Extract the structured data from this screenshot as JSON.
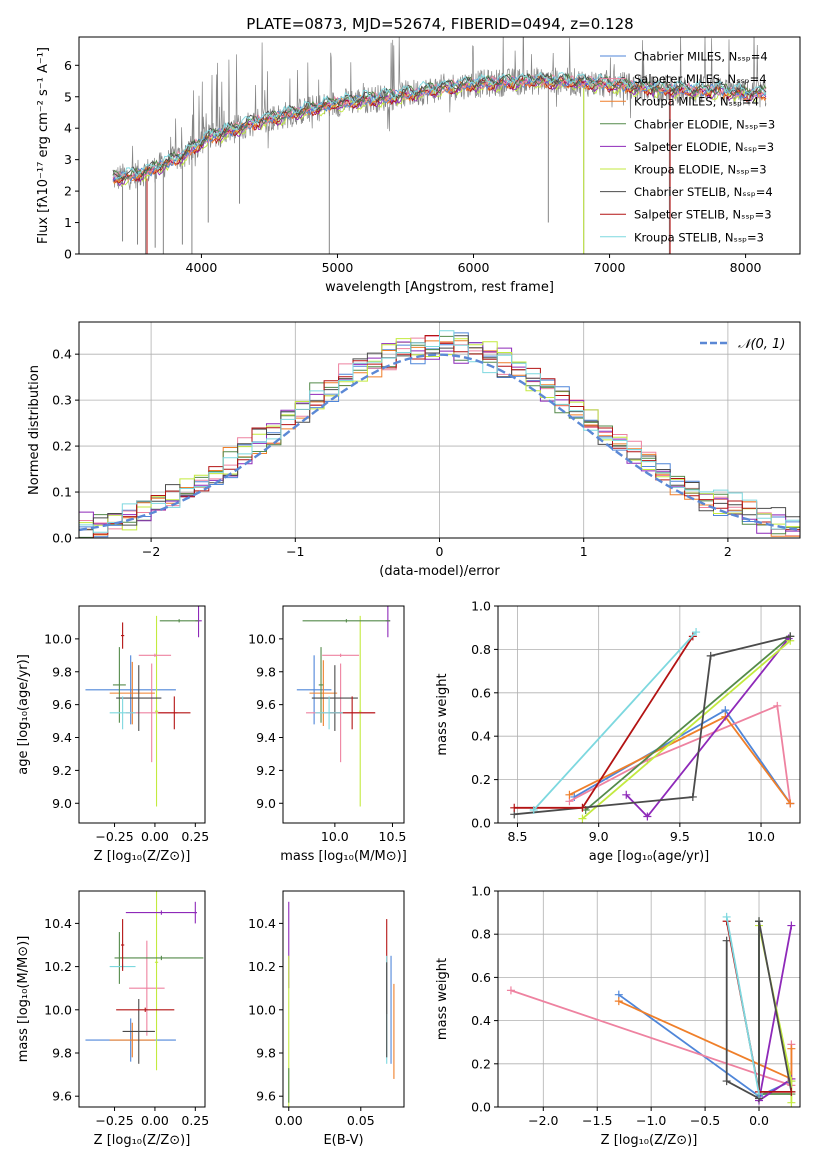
{
  "figure": {
    "title": "PLATE=0873, MJD=52674, FIBERID=0494, z=0.128",
    "colors": {
      "chabrier_miles": "#4f86d9",
      "salpeter_miles": "#ee82a0",
      "kroupa_miles": "#ef7f2a",
      "chabrier_elodie": "#548a4a",
      "salpeter_elodie": "#8e29b9",
      "kroupa_elodie": "#c3ea3f",
      "chabrier_stelib": "#4b4b4b",
      "salpeter_stelib": "#b31313",
      "kroupa_stelib": "#7dd8df",
      "data_grey": "#858585",
      "gaussian": "#5b88d5"
    }
  },
  "chart_data": [
    {
      "id": "spectrum",
      "type": "line",
      "title": "PLATE=0873, MJD=52674, FIBERID=0494, z=0.128",
      "xlabel": "wavelength [Angstrom, rest frame]",
      "ylabel": "Flux [fλ10⁻¹⁷ erg cm⁻² s⁻¹ A⁻¹]",
      "xlim": [
        3100,
        8400
      ],
      "ylim": [
        0,
        6.9
      ],
      "xticks": [
        4000,
        5000,
        6000,
        7000,
        8000
      ],
      "yticks": [
        0,
        1,
        2,
        3,
        4,
        5,
        6
      ],
      "grid": false,
      "legend_position": "right",
      "legend": [
        {
          "label": "Chabrier MILES, Nₛₛₚ=4",
          "color_key": "chabrier_miles"
        },
        {
          "label": "Salpeter MILES, Nₛₛₚ=4",
          "color_key": "salpeter_miles"
        },
        {
          "label": "Kroupa MILES, Nₛₛₚ=4",
          "color_key": "kroupa_miles"
        },
        {
          "label": "Chabrier ELODIE, Nₛₛₚ=3",
          "color_key": "chabrier_elodie"
        },
        {
          "label": "Salpeter ELODIE, Nₛₛₚ=3",
          "color_key": "salpeter_elodie"
        },
        {
          "label": "Kroupa ELODIE, Nₛₛₚ=3",
          "color_key": "kroupa_elodie"
        },
        {
          "label": "Chabrier STELIB, Nₛₛₚ=4",
          "color_key": "chabrier_stelib"
        },
        {
          "label": "Salpeter STELIB, Nₛₛₚ=3",
          "color_key": "salpeter_stelib"
        },
        {
          "label": "Kroupa STELIB, Nₛₛₚ=3",
          "color_key": "kroupa_stelib"
        }
      ],
      "continuum": {
        "wavelength": [
          3350,
          3500,
          3650,
          3750,
          3850,
          3950,
          4050,
          4200,
          4400,
          4600,
          4800,
          5000,
          5200,
          5400,
          5600,
          5800,
          6000,
          6200,
          6400,
          6600,
          6800,
          7000,
          7200,
          7400,
          7600,
          7800,
          8000,
          8150
        ],
        "flux": [
          2.4,
          2.5,
          2.7,
          2.9,
          3.1,
          3.4,
          3.7,
          3.9,
          4.2,
          4.4,
          4.6,
          4.8,
          4.9,
          5.0,
          5.15,
          5.3,
          5.4,
          5.45,
          5.5,
          5.5,
          5.45,
          5.4,
          5.3,
          5.25,
          5.2,
          5.2,
          5.1,
          5.1
        ]
      },
      "absorption_drops": [
        {
          "wavelength": 3420,
          "flux": 0.4
        },
        {
          "wavelength": 3530,
          "flux": 0.3
        },
        {
          "wavelength": 3590,
          "flux": 0.0
        },
        {
          "wavelength": 3660,
          "flux": 0.2
        },
        {
          "wavelength": 3720,
          "flux": 0.0
        },
        {
          "wavelength": 3860,
          "flux": 0.3
        },
        {
          "wavelength": 3930,
          "flux": 0.0
        },
        {
          "wavelength": 4050,
          "flux": 1.0
        },
        {
          "wavelength": 4280,
          "flux": 1.6
        },
        {
          "wavelength": 4940,
          "flux": 0.0
        },
        {
          "wavelength": 6550,
          "flux": 1.0
        },
        {
          "wavelength": 6810,
          "flux": 0.0
        },
        {
          "wavelength": 7440,
          "flux": 0.0
        }
      ]
    },
    {
      "id": "residuals",
      "type": "line",
      "xlabel": "(data-model)/error",
      "ylabel": "Normed distribution",
      "xlim": [
        -2.5,
        2.5
      ],
      "ylim": [
        0,
        0.47
      ],
      "xticks": [
        -2,
        -1,
        0,
        1,
        2
      ],
      "yticks": [
        0.0,
        0.1,
        0.2,
        0.3,
        0.4
      ],
      "grid": true,
      "legend_position": "top-right",
      "legend": [
        {
          "label": "𝒩(0, 1)",
          "style": "dashed",
          "color_key": "gaussian"
        }
      ],
      "histogram_bin_width": 0.1,
      "gaussian": {
        "mean": 0,
        "sigma": 1
      }
    },
    {
      "id": "age_vs_Z",
      "type": "scatter",
      "xlabel": "Z [log₁₀(Z/Z⊙)]",
      "ylabel": "age  [log₁₀(age/yr)]",
      "xlim": [
        -0.47,
        0.31
      ],
      "ylim": [
        8.88,
        10.2
      ],
      "xticks": [
        -0.25,
        0.0,
        0.25
      ],
      "xticklabels": [
        "−0.25",
        "0.00",
        "0.25"
      ],
      "yticks": [
        9.0,
        9.2,
        9.4,
        9.6,
        9.8,
        10.0
      ],
      "grid": false,
      "errorbars": [
        {
          "x": -0.15,
          "y": 9.69,
          "xerr": 0.28,
          "yerr": 0.21,
          "color_key": "chabrier_miles"
        },
        {
          "x": -0.02,
          "y": 9.55,
          "xerr": 0.16,
          "yerr": 0.3,
          "color_key": "salpeter_miles"
        },
        {
          "x": -0.14,
          "y": 9.67,
          "xerr": 0.14,
          "yerr": 0.19,
          "color_key": "kroupa_miles"
        },
        {
          "x": -0.22,
          "y": 9.72,
          "xerr": 0.04,
          "yerr": 0.23,
          "color_key": "chabrier_elodie"
        },
        {
          "x": 0.27,
          "y": 10.11,
          "xerr": 0.02,
          "yerr": 0.1,
          "color_key": "salpeter_elodie"
        },
        {
          "x": 0.01,
          "y": 9.56,
          "xerr": 0.01,
          "yerr": 0.58,
          "color_key": "kroupa_elodie"
        },
        {
          "x": -0.1,
          "y": 9.64,
          "xerr": 0.14,
          "yerr": 0.2,
          "color_key": "chabrier_stelib"
        },
        {
          "x": 0.12,
          "y": 9.55,
          "xerr": 0.1,
          "yerr": 0.1,
          "color_key": "salpeter_stelib"
        },
        {
          "x": -0.2,
          "y": 9.55,
          "xerr": 0.08,
          "yerr": 0.1,
          "color_key": "kroupa_stelib"
        },
        {
          "x": -0.2,
          "y": 10.02,
          "xerr": 0.01,
          "yerr": 0.08,
          "color_key": "salpeter_stelib"
        },
        {
          "x": 0.0,
          "y": 9.9,
          "xerr": 0.1,
          "yerr": 0.01,
          "color_key": "salpeter_miles"
        },
        {
          "x": 0.15,
          "y": 10.11,
          "xerr": 0.12,
          "yerr": 0.01,
          "color_key": "chabrier_elodie"
        }
      ]
    },
    {
      "id": "age_vs_mass",
      "type": "scatter",
      "xlabel": "mass [log₁₀(M/M⊙)]",
      "ylabel": "",
      "xlim": [
        9.55,
        10.6
      ],
      "ylim": [
        8.88,
        10.2
      ],
      "xticks": [
        10.0,
        10.5
      ],
      "xticklabels": [
        "10.0",
        "10.5"
      ],
      "yticks": [
        9.0,
        9.2,
        9.4,
        9.6,
        9.8,
        10.0
      ],
      "grid": false,
      "errorbars": [
        {
          "x": 9.82,
          "y": 9.69,
          "xerr": 0.15,
          "yerr": 0.21,
          "color_key": "chabrier_miles"
        },
        {
          "x": 10.05,
          "y": 9.55,
          "xerr": 0.3,
          "yerr": 0.3,
          "color_key": "salpeter_miles"
        },
        {
          "x": 9.9,
          "y": 9.67,
          "xerr": 0.12,
          "yerr": 0.2,
          "color_key": "kroupa_miles"
        },
        {
          "x": 9.88,
          "y": 9.72,
          "xerr": 0.02,
          "yerr": 0.23,
          "color_key": "chabrier_elodie"
        },
        {
          "x": 10.46,
          "y": 10.11,
          "xerr": 0.02,
          "yerr": 0.1,
          "color_key": "salpeter_elodie"
        },
        {
          "x": 10.22,
          "y": 9.56,
          "xerr": 0.01,
          "yerr": 0.58,
          "color_key": "kroupa_elodie"
        },
        {
          "x": 10.0,
          "y": 9.64,
          "xerr": 0.2,
          "yerr": 0.2,
          "color_key": "chabrier_stelib"
        },
        {
          "x": 10.15,
          "y": 9.55,
          "xerr": 0.2,
          "yerr": 0.1,
          "color_key": "salpeter_stelib"
        },
        {
          "x": 9.95,
          "y": 9.55,
          "xerr": 0.12,
          "yerr": 0.1,
          "color_key": "kroupa_stelib"
        },
        {
          "x": 10.1,
          "y": 10.11,
          "xerr": 0.38,
          "yerr": 0.01,
          "color_key": "chabrier_elodie"
        },
        {
          "x": 10.05,
          "y": 9.9,
          "xerr": 0.16,
          "yerr": 0.01,
          "color_key": "salpeter_miles"
        }
      ]
    },
    {
      "id": "weight_vs_age",
      "type": "line",
      "xlabel": "age  [log₁₀(age/yr)]",
      "ylabel": "mass weight",
      "xlim": [
        8.38,
        10.24
      ],
      "ylim": [
        0,
        1.0
      ],
      "xticks": [
        8.5,
        9.0,
        9.5,
        10.0
      ],
      "yticks": [
        0.0,
        0.2,
        0.4,
        0.6,
        0.8,
        1.0
      ],
      "grid": true,
      "series": [
        {
          "color_key": "chabrier_miles",
          "x": [
            8.85,
            9.78,
            10.18
          ],
          "y": [
            0.12,
            0.52,
            0.09
          ]
        },
        {
          "color_key": "salpeter_miles",
          "x": [
            8.82,
            9.3,
            10.1,
            10.18
          ],
          "y": [
            0.1,
            0.29,
            0.54,
            0.09
          ]
        },
        {
          "color_key": "kroupa_miles",
          "x": [
            8.82,
            9.78,
            10.18
          ],
          "y": [
            0.13,
            0.49,
            0.09
          ]
        },
        {
          "color_key": "chabrier_elodie",
          "x": [
            8.92,
            10.18
          ],
          "y": [
            0.06,
            0.86
          ]
        },
        {
          "color_key": "salpeter_elodie",
          "x": [
            9.17,
            9.3,
            10.17
          ],
          "y": [
            0.13,
            0.03,
            0.85
          ]
        },
        {
          "color_key": "kroupa_elodie",
          "x": [
            8.9,
            10.18
          ],
          "y": [
            0.02,
            0.84
          ]
        },
        {
          "color_key": "chabrier_stelib",
          "x": [
            8.48,
            9.58,
            9.69,
            10.18
          ],
          "y": [
            0.04,
            0.12,
            0.77,
            0.86
          ]
        },
        {
          "color_key": "salpeter_stelib",
          "x": [
            8.48,
            8.9,
            9.58
          ],
          "y": [
            0.07,
            0.07,
            0.86
          ]
        },
        {
          "color_key": "kroupa_stelib",
          "x": [
            8.6,
            9.6
          ],
          "y": [
            0.06,
            0.88
          ]
        }
      ]
    },
    {
      "id": "mass_vs_Z",
      "type": "scatter",
      "xlabel": "Z [log₁₀(Z/Z⊙)]",
      "ylabel": "mass [log₁₀(M/M⊙)]",
      "xlim": [
        -0.47,
        0.31
      ],
      "ylim": [
        9.55,
        10.55
      ],
      "xticks": [
        -0.25,
        0.0,
        0.25
      ],
      "xticklabels": [
        "−0.25",
        "0.00",
        "0.25"
      ],
      "yticks": [
        9.6,
        9.8,
        10.0,
        10.2,
        10.4
      ],
      "grid": false,
      "errorbars": [
        {
          "x": -0.15,
          "y": 9.86,
          "xerr": 0.28,
          "yerr": 0.1,
          "color_key": "chabrier_miles"
        },
        {
          "x": -0.05,
          "y": 10.1,
          "xerr": 0.11,
          "yerr": 0.22,
          "color_key": "salpeter_miles"
        },
        {
          "x": -0.14,
          "y": 9.86,
          "xerr": 0.14,
          "yerr": 0.08,
          "color_key": "kroupa_miles"
        },
        {
          "x": -0.22,
          "y": 10.24,
          "xerr": 0.03,
          "yerr": 0.12,
          "color_key": "chabrier_elodie"
        },
        {
          "x": 0.25,
          "y": 10.45,
          "xerr": 0.01,
          "yerr": 0.05,
          "color_key": "salpeter_elodie"
        },
        {
          "x": 0.01,
          "y": 10.22,
          "xerr": 0.01,
          "yerr": 0.5,
          "color_key": "kroupa_elodie"
        },
        {
          "x": -0.1,
          "y": 9.9,
          "xerr": 0.1,
          "yerr": 0.15,
          "color_key": "chabrier_stelib"
        },
        {
          "x": -0.06,
          "y": 10.0,
          "xerr": 0.18,
          "yerr": 0.01,
          "color_key": "salpeter_stelib"
        },
        {
          "x": -0.2,
          "y": 10.2,
          "xerr": 0.08,
          "yerr": 0.01,
          "color_key": "kroupa_stelib"
        },
        {
          "x": 0.04,
          "y": 10.45,
          "xerr": 0.22,
          "yerr": 0.01,
          "color_key": "salpeter_elodie"
        },
        {
          "x": 0.04,
          "y": 10.24,
          "xerr": 0.26,
          "yerr": 0.01,
          "color_key": "chabrier_elodie"
        },
        {
          "x": -0.2,
          "y": 10.3,
          "xerr": 0.01,
          "yerr": 0.12,
          "color_key": "salpeter_stelib"
        }
      ]
    },
    {
      "id": "mass_vs_ebv",
      "type": "scatter",
      "xlabel": "E(B-V)",
      "ylabel": "",
      "xlim": [
        -0.004,
        0.08
      ],
      "ylim": [
        9.55,
        10.55
      ],
      "xticks": [
        0.0,
        0.05
      ],
      "xticklabels": [
        "0.00",
        "0.05"
      ],
      "yticks": [
        9.6,
        9.8,
        10.0,
        10.2,
        10.4
      ],
      "grid": false,
      "errorbars": [
        {
          "x": 0.0,
          "y": 10.3,
          "xerr": 0.0,
          "yerr": 0.2,
          "color_key": "salpeter_elodie"
        },
        {
          "x": 0.0,
          "y": 9.9,
          "xerr": 0.0,
          "yerr": 0.35,
          "color_key": "kroupa_elodie"
        },
        {
          "x": 0.0,
          "y": 9.65,
          "xerr": 0.0,
          "yerr": 0.08,
          "color_key": "chabrier_elodie"
        },
        {
          "x": 0.068,
          "y": 10.2,
          "xerr": 0.0,
          "yerr": 0.22,
          "color_key": "salpeter_stelib"
        },
        {
          "x": 0.068,
          "y": 10.0,
          "xerr": 0.0,
          "yerr": 0.25,
          "color_key": "kroupa_stelib"
        },
        {
          "x": 0.068,
          "y": 10.0,
          "xerr": 0.0,
          "yerr": 0.22,
          "color_key": "chabrier_stelib"
        },
        {
          "x": 0.071,
          "y": 10.0,
          "xerr": 0.0,
          "yerr": 0.25,
          "color_key": "chabrier_miles"
        },
        {
          "x": 0.073,
          "y": 9.9,
          "xerr": 0.0,
          "yerr": 0.22,
          "color_key": "kroupa_miles"
        }
      ]
    },
    {
      "id": "weight_vs_Z",
      "type": "line",
      "xlabel": "Z [log₁₀(Z/Z⊙)]",
      "ylabel": "mass weight",
      "xlim": [
        -2.42,
        0.38
      ],
      "ylim": [
        0,
        1.0
      ],
      "xticks": [
        -2.0,
        -1.5,
        -1.0,
        -0.5,
        0.0
      ],
      "xticklabels": [
        "−2.0",
        "−1.5",
        "−1.0",
        "−0.5",
        "0.0"
      ],
      "yticks": [
        0.0,
        0.2,
        0.4,
        0.6,
        0.8,
        1.0
      ],
      "grid": true,
      "series": [
        {
          "color_key": "chabrier_miles",
          "x": [
            -1.3,
            0.0,
            0.3
          ],
          "y": [
            0.52,
            0.05,
            0.12
          ]
        },
        {
          "color_key": "salpeter_miles",
          "x": [
            -2.3,
            0.3,
            0.3
          ],
          "y": [
            0.54,
            0.1,
            0.29
          ]
        },
        {
          "color_key": "kroupa_miles",
          "x": [
            -1.3,
            0.3,
            0.3
          ],
          "y": [
            0.49,
            0.13,
            0.27
          ]
        },
        {
          "color_key": "chabrier_elodie",
          "x": [
            0.0,
            0.0,
            0.3
          ],
          "y": [
            0.86,
            0.06,
            0.06
          ]
        },
        {
          "color_key": "salpeter_elodie",
          "x": [
            0.3,
            0.0,
            0.3
          ],
          "y": [
            0.84,
            0.03,
            0.13
          ]
        },
        {
          "color_key": "kroupa_elodie",
          "x": [
            0.0,
            0.3,
            0.3
          ],
          "y": [
            0.84,
            0.12,
            0.02
          ]
        },
        {
          "color_key": "chabrier_stelib",
          "x": [
            -0.3,
            -0.3,
            0.0,
            0.0,
            0.3
          ],
          "y": [
            0.77,
            0.12,
            0.04,
            0.86,
            0.07
          ]
        },
        {
          "color_key": "salpeter_stelib",
          "x": [
            -0.3,
            0.0,
            0.3
          ],
          "y": [
            0.86,
            0.07,
            0.07
          ]
        },
        {
          "color_key": "kroupa_stelib",
          "x": [
            -0.3,
            0.0
          ],
          "y": [
            0.88,
            0.06
          ]
        }
      ]
    }
  ]
}
